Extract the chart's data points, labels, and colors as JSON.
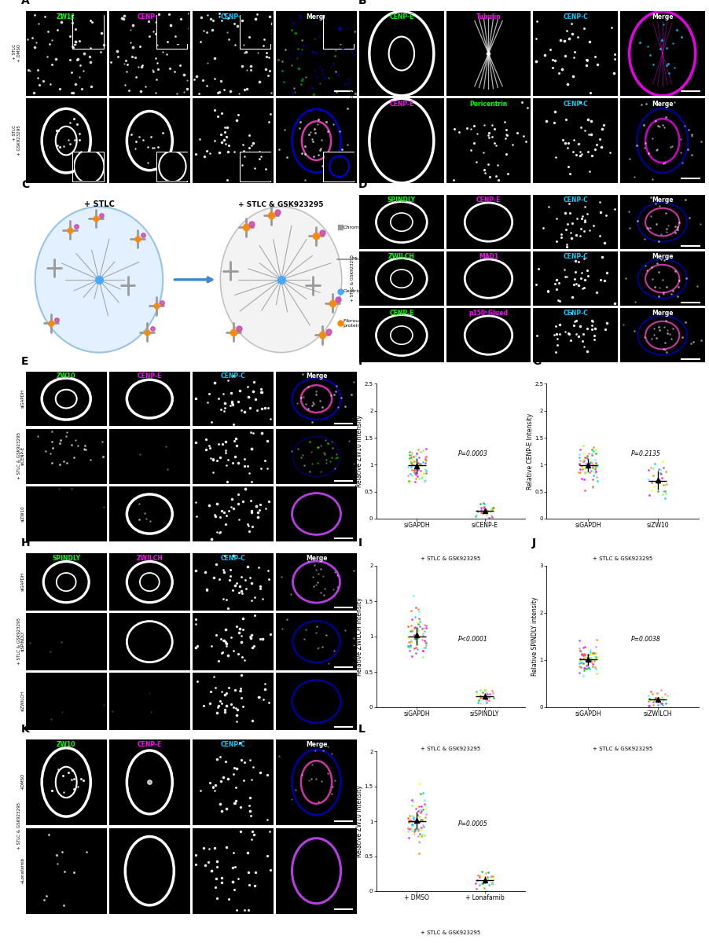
{
  "fig_width": 9.03,
  "fig_height": 12.0,
  "bg_color": "#ffffff",
  "panel_label_fontsize": 10,
  "scatter_F": {
    "ylabel": "Relative ZW10 intensity",
    "xlabels": [
      "siGAPDH",
      "siCENP-E"
    ],
    "xlabel_bottom": "+ STLC & GSK923295",
    "pvalue": "P=0.0003",
    "ylim": [
      0.0,
      2.5
    ],
    "yticks": [
      0.0,
      0.5,
      1.0,
      1.5,
      2.0,
      2.5
    ]
  },
  "scatter_G": {
    "ylabel": "Relative CENP-E Intensity",
    "xlabels": [
      "siGAPDH",
      "siZW10"
    ],
    "xlabel_bottom": "+ STLC & GSK923295",
    "pvalue": "P=0.2135",
    "ylim": [
      0.0,
      2.5
    ],
    "yticks": [
      0.0,
      0.5,
      1.0,
      1.5,
      2.0,
      2.5
    ]
  },
  "scatter_I": {
    "ylabel": "Relative ZWILCH intensity",
    "xlabels": [
      "siGAPDH",
      "siSPINDLY"
    ],
    "xlabel_bottom": "+ STLC & GSK923295",
    "pvalue": "P<0.0001",
    "ylim": [
      0.0,
      2.0
    ],
    "yticks": [
      0.0,
      0.5,
      1.0,
      1.5,
      2.0
    ]
  },
  "scatter_J": {
    "ylabel": "Relative SPINDLY intensity",
    "xlabels": [
      "siGAPDH",
      "siZWILCH"
    ],
    "xlabel_bottom": "+ STLC & GSK923295",
    "pvalue": "P=0.0038",
    "ylim": [
      0.0,
      3.0
    ],
    "yticks": [
      0.0,
      1.0,
      2.0,
      3.0
    ]
  },
  "scatter_L": {
    "ylabel": "Relative ZW10 intensity",
    "xlabels": [
      "+ DMSO",
      "+ Lonafarnib"
    ],
    "xlabel_bottom": "+ STLC & GSK923295",
    "pvalue": "P=0.0005",
    "ylim": [
      0.0,
      2.0
    ],
    "yticks": [
      0.0,
      0.5,
      1.0,
      1.5,
      2.0
    ]
  }
}
